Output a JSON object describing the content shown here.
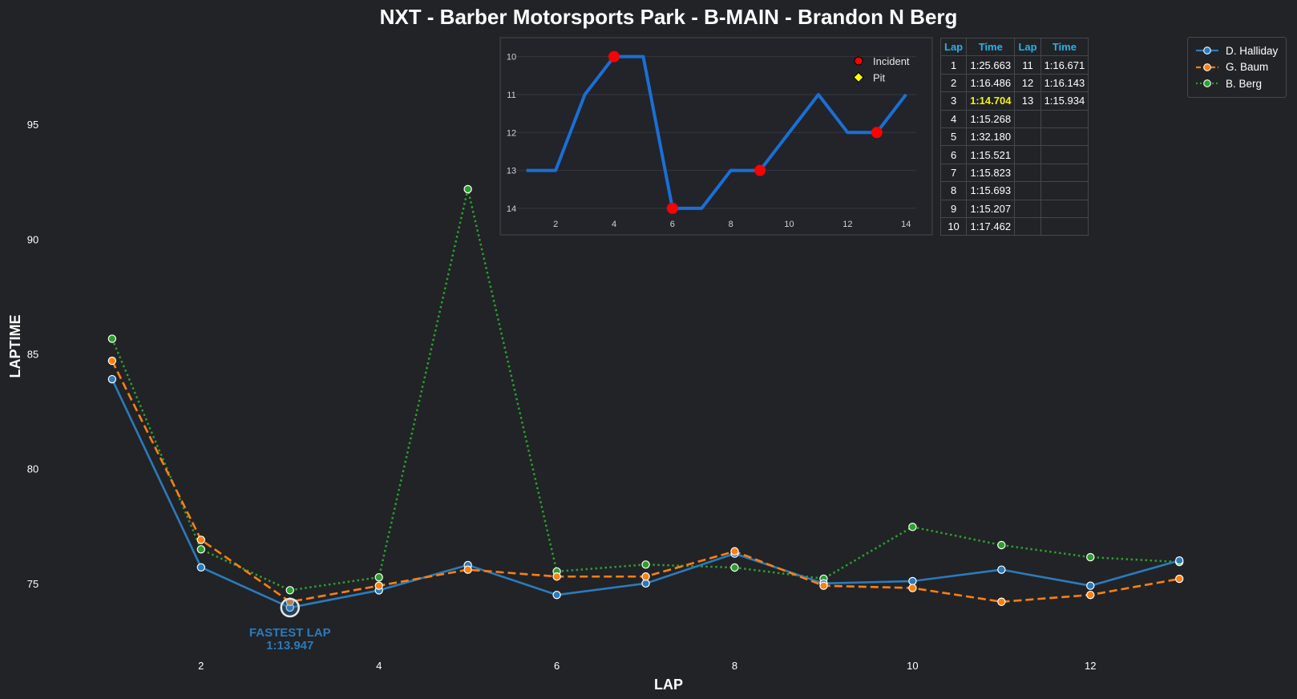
{
  "chart_data": [
    {
      "type": "line",
      "title": "NXT - Barber Motorsports Park - B-MAIN - Brandon N Berg",
      "xlabel": "LAP",
      "ylabel": "LAPTIME",
      "xlim": [
        0.1,
        13.8
      ],
      "ylim": [
        72.2,
        98.5
      ],
      "x_ticks": [
        2,
        4,
        6,
        8,
        10,
        12
      ],
      "y_ticks": [
        75,
        80,
        85,
        90,
        95
      ],
      "grid": false,
      "legend_position": "top-right",
      "x": [
        1,
        2,
        3,
        4,
        5,
        6,
        7,
        8,
        9,
        10,
        11,
        12,
        13
      ],
      "series": [
        {
          "name": "D. Halliday",
          "color": "#2b7bba",
          "dash": "solid",
          "values": [
            83.9,
            75.7,
            73.947,
            74.7,
            75.8,
            74.5,
            75.0,
            76.3,
            75.0,
            75.1,
            75.6,
            74.9,
            76.0
          ]
        },
        {
          "name": "G. Baum",
          "color": "#ff7f0e",
          "dash": "dashed",
          "values": [
            84.7,
            76.9,
            74.2,
            74.9,
            75.6,
            75.3,
            75.3,
            76.4,
            74.9,
            74.8,
            74.2,
            74.5,
            75.2
          ]
        },
        {
          "name": "B. Berg",
          "color": "#2ca02c",
          "dash": "dotted",
          "values": [
            85.663,
            76.486,
            74.704,
            75.268,
            92.18,
            75.521,
            75.823,
            75.693,
            75.207,
            77.462,
            76.671,
            76.143,
            75.934
          ]
        }
      ],
      "annotation": {
        "label": "FASTEST LAP",
        "value": "1:13.947",
        "x": 3,
        "y": 73.947,
        "series": "D. Halliday"
      }
    },
    {
      "type": "line",
      "title": "",
      "xlim": [
        0.1,
        14.9
      ],
      "ylim": [
        14.7,
        9.5
      ],
      "y_inverted": true,
      "x_ticks": [
        2,
        4,
        6,
        8,
        10,
        12,
        14
      ],
      "y_ticks": [
        10,
        11,
        12,
        13,
        14
      ],
      "grid": true,
      "color": "#1a6fd6",
      "x": [
        1,
        2,
        3,
        4,
        5,
        6,
        7,
        8,
        9,
        10,
        11,
        12,
        13,
        14
      ],
      "values": [
        13,
        13,
        11,
        10,
        10,
        14,
        14,
        13,
        13,
        12,
        11,
        12,
        12,
        11
      ],
      "incidents": [
        {
          "x": 4,
          "y": 10
        },
        {
          "x": 6,
          "y": 14
        },
        {
          "x": 9,
          "y": 13
        },
        {
          "x": 13,
          "y": 12
        }
      ],
      "pits": [],
      "legend": [
        {
          "label": "Incident",
          "color": "#ff0000",
          "marker": "circle"
        },
        {
          "label": "Pit",
          "color": "#ffff00",
          "marker": "diamond"
        }
      ],
      "legend_position": "top-right"
    },
    {
      "type": "table",
      "headers": [
        "Lap",
        "Time",
        "Lap",
        "Time"
      ],
      "best_lap": 3,
      "rows": [
        [
          "1",
          "1:25.663",
          "11",
          "1:16.671"
        ],
        [
          "2",
          "1:16.486",
          "12",
          "1:16.143"
        ],
        [
          "3",
          "1:14.704",
          "13",
          "1:15.934"
        ],
        [
          "4",
          "1:15.268",
          "",
          ""
        ],
        [
          "5",
          "1:32.180",
          "",
          ""
        ],
        [
          "6",
          "1:15.521",
          "",
          ""
        ],
        [
          "7",
          "1:15.823",
          "",
          ""
        ],
        [
          "8",
          "1:15.693",
          "",
          ""
        ],
        [
          "9",
          "1:15.207",
          "",
          ""
        ],
        [
          "10",
          "1:17.462",
          "",
          ""
        ]
      ]
    }
  ]
}
